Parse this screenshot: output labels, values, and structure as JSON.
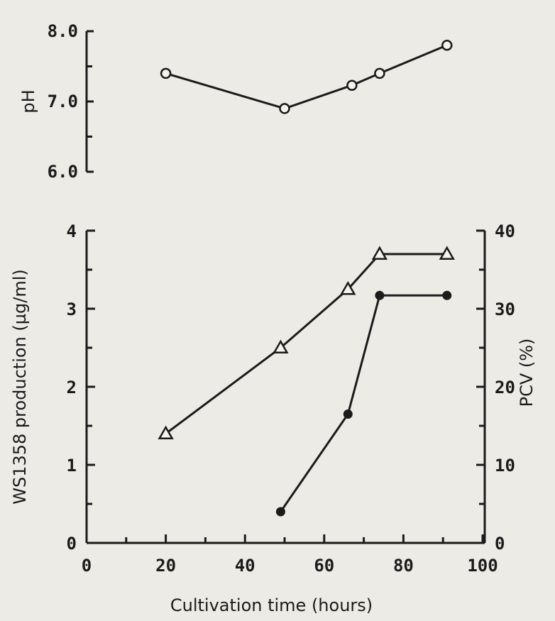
{
  "chart_data": [
    {
      "type": "line",
      "ylabel": "pH",
      "ylim": [
        6.0,
        8.0
      ],
      "xlim": [
        0,
        100
      ],
      "yticks": [
        "6.0",
        "7.0",
        "8.0"
      ],
      "series": [
        {
          "marker": "open-circle",
          "x": [
            20,
            50,
            67,
            74,
            91
          ],
          "y": [
            7.4,
            6.9,
            7.23,
            7.4,
            7.8
          ]
        }
      ]
    },
    {
      "type": "line",
      "xlabel": "Cultivation time (hours)",
      "ylabel": "WS1358 production (µg/ml)",
      "y2label": "PCV (%)",
      "xlim": [
        0,
        100
      ],
      "ylim": [
        0,
        4
      ],
      "y2lim": [
        0,
        40
      ],
      "xticks": [
        "0",
        "20",
        "40",
        "60",
        "80",
        "100"
      ],
      "yticks": [
        "0",
        "1",
        "2",
        "3",
        "4"
      ],
      "y2ticks": [
        "0",
        "10",
        "20",
        "30",
        "40"
      ],
      "series": [
        {
          "marker": "open-triangle",
          "axis": "right",
          "x": [
            20,
            49,
            66,
            74,
            91
          ],
          "y": [
            14,
            25,
            32.5,
            37,
            37
          ]
        },
        {
          "marker": "filled-circle",
          "axis": "left",
          "x": [
            49,
            66,
            74,
            91
          ],
          "y": [
            0.4,
            1.65,
            3.17,
            3.17
          ]
        }
      ]
    }
  ]
}
